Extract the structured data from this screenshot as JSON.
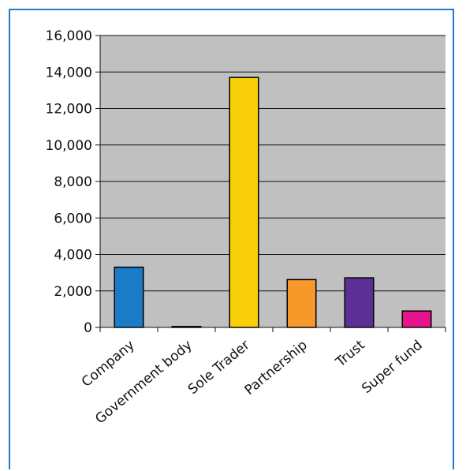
{
  "chart_data": {
    "type": "bar",
    "title": "",
    "xlabel": "",
    "ylabel": "",
    "categories": [
      "Company",
      "Government body",
      "Sole Trader",
      "Partnership",
      "Trust",
      "Super fund"
    ],
    "values": [
      3300,
      50,
      13700,
      2620,
      2720,
      900
    ],
    "colors": [
      "#1a7bc6",
      "#1a7bc6",
      "#f9cf0a",
      "#f7982a",
      "#5b2f93",
      "#e6148c"
    ],
    "ylim": [
      0,
      16000
    ],
    "yticks": [
      0,
      2000,
      4000,
      6000,
      8000,
      10000,
      12000,
      14000,
      16000
    ],
    "ytick_labels": [
      "0",
      "2,000",
      "4,000",
      "6,000",
      "8,000",
      "10,000",
      "12,000",
      "14,000",
      "16,000"
    ],
    "grid": true,
    "plot_background": "#c0c0c0",
    "frame_color": "#1f7ac9"
  }
}
